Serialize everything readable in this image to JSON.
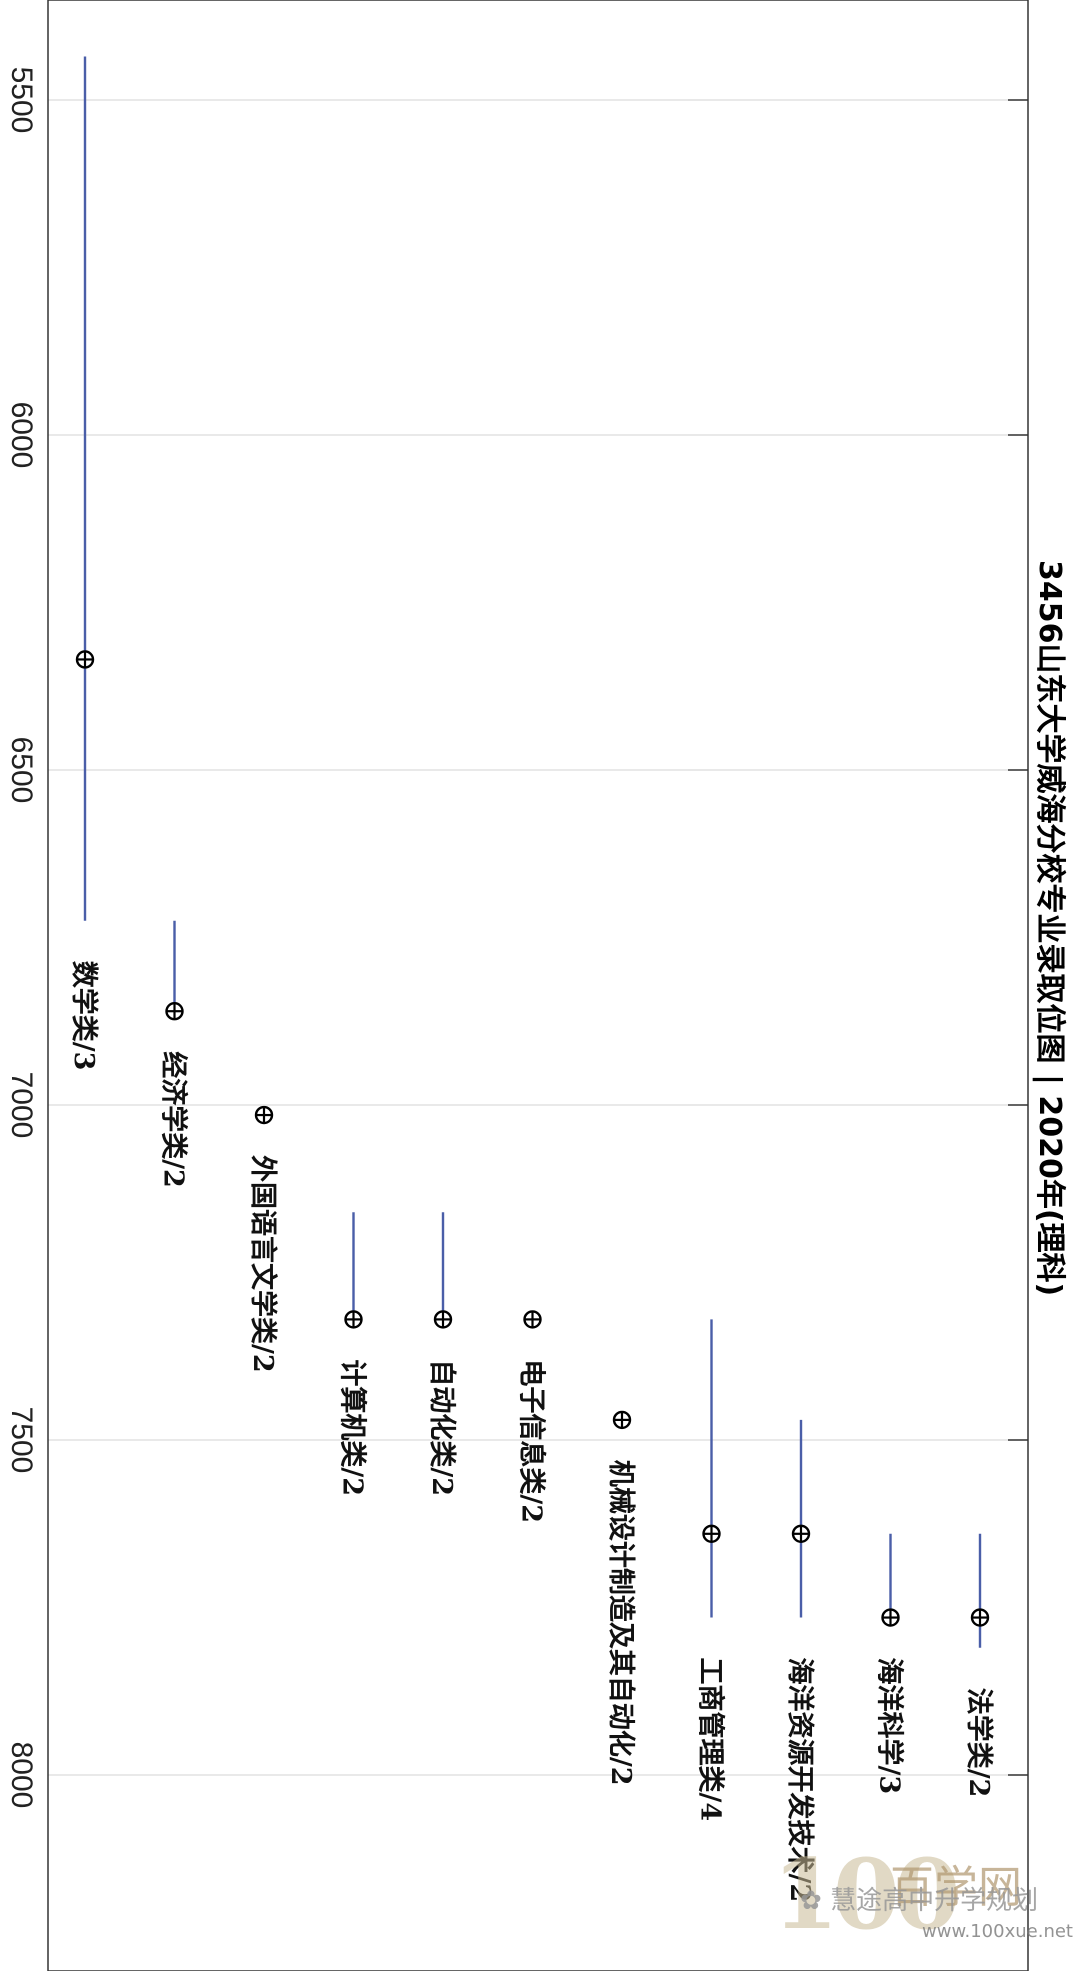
{
  "chart_data": {
    "type": "range-dot",
    "orientation": "rotated-90",
    "title": "3456山东大学威海分校专业录取位图 | 2020年(理科)",
    "value_axis": {
      "ticks": [
        5500,
        6000,
        6500,
        7000,
        7500,
        8000
      ],
      "range": [
        5380,
        8270
      ],
      "grid": true
    },
    "categories": [
      {
        "label": "数学类/3",
        "min": 5435,
        "max": 6725,
        "point": 6335
      },
      {
        "label": "经济学类/2",
        "min": 6725,
        "max": 6860,
        "point": 6860
      },
      {
        "label": "外国语言文学类/2",
        "min": 7015,
        "max": 7015,
        "point": 7015
      },
      {
        "label": "计算机类/2",
        "min": 7160,
        "max": 7320,
        "point": 7320
      },
      {
        "label": "自动化类/2",
        "min": 7160,
        "max": 7320,
        "point": 7320
      },
      {
        "label": "电子信息类/2",
        "min": 7320,
        "max": 7320,
        "point": 7320
      },
      {
        "label": "机械设计制造及其自动化/2",
        "min": 7470,
        "max": 7470,
        "point": 7470
      },
      {
        "label": "工商管理类/4",
        "min": 7320,
        "max": 7765,
        "point": 7640
      },
      {
        "label": "海洋资源开发技术/2",
        "min": 7470,
        "max": 7765,
        "point": 7640
      },
      {
        "label": "海洋科学/3",
        "min": 7640,
        "max": 7765,
        "point": 7765
      },
      {
        "label": "法学类/2",
        "min": 7640,
        "max": 7810,
        "point": 7765
      }
    ]
  },
  "watermark": {
    "account": "慧途高中升学规划",
    "logo": "100",
    "brand": "百学网",
    "url": "www.100xue.net"
  }
}
